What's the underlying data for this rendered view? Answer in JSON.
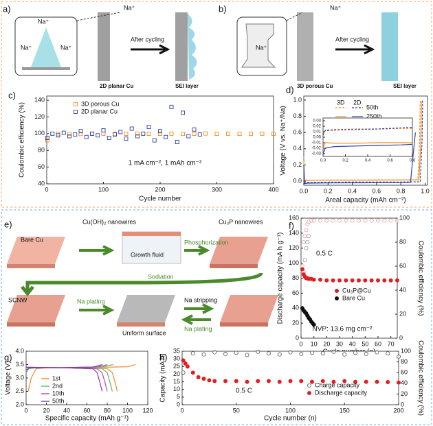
{
  "panels": {
    "a": {
      "label": "a)",
      "ions": [
        "Na⁺",
        "Na⁺",
        "Na⁺",
        "Na⁺"
      ],
      "after": "After cycling",
      "substrate": "2D planar Cu",
      "sei": "SEI layer"
    },
    "b": {
      "label": "b)",
      "ions": [
        "Na⁺",
        "Na⁺"
      ],
      "after": "After cycling",
      "substrate": "3D porous Cu",
      "sei": "SEI layer"
    },
    "e": {
      "label": "e)",
      "bare": "Bare Cu",
      "nanowires": "Cu(OH)₂ nanowires",
      "phos": "Phosphorization",
      "cu3p": "Cu₃P nanowires",
      "fluid": "Growth fluid",
      "sodiation": "Sodiation",
      "scnw": "SCNW",
      "plating1": "Na plating",
      "uniform": "Uniform surface",
      "stripping": "Na stripping",
      "plating2": "Na plating"
    }
  },
  "chart_data": [
    {
      "type": "scatter",
      "panel": "c)",
      "x_label": "Cycle number",
      "y_label": "Coulombic efficiency (%)",
      "xlim": [
        0,
        400
      ],
      "xticks": [
        0,
        100,
        200,
        300,
        400
      ],
      "ylim": [
        40,
        145
      ],
      "yticks": [
        40,
        60,
        80,
        100,
        120,
        140
      ],
      "annotations": [
        "1 mA cm⁻², 1 mAh cm⁻²"
      ],
      "series": [
        {
          "name": "3D porous Cu",
          "color": "#f28c1c",
          "marker": "square",
          "x": [
            1,
            20,
            40,
            60,
            80,
            100,
            120,
            140,
            160,
            180,
            200,
            220,
            240,
            260,
            280,
            300,
            320,
            340,
            360,
            380,
            400
          ],
          "values": [
            92,
            99.5,
            99.8,
            99.6,
            99.9,
            100,
            99.7,
            99.8,
            100.1,
            99.9,
            99.8,
            100,
            99.7,
            99.9,
            100.2,
            99.8,
            100,
            99.9,
            99.7,
            100,
            99.8
          ]
        },
        {
          "name": "2D planar  Cu",
          "color": "#2a3fa8",
          "marker": "square",
          "x": [
            1,
            10,
            20,
            30,
            40,
            50,
            60,
            70,
            80,
            90,
            100,
            110,
            120,
            130,
            140,
            150,
            160,
            170,
            180,
            190,
            200,
            210,
            220,
            230,
            240,
            250,
            260,
            270
          ],
          "values": [
            95,
            100,
            98,
            101,
            97,
            99,
            103,
            96,
            100,
            98,
            104,
            95,
            99,
            102,
            94,
            106,
            97,
            100,
            108,
            92,
            103,
            96,
            132,
            90,
            125,
            97,
            105,
            99
          ]
        }
      ]
    },
    {
      "type": "line",
      "panel": "d)",
      "x_label": "Areal capacity (mAh cm⁻²)",
      "y_label": "Voltage (V vs. Na⁺/Na)",
      "xlim": [
        0,
        1.02
      ],
      "xticks": [
        {
          "value": 0,
          "label": "0.0"
        },
        0.2,
        0.4,
        0.6,
        0.8,
        {
          "value": 1,
          "label": "1.0"
        }
      ],
      "ylim": [
        -0.05,
        1.05
      ],
      "yticks": [
        {
          "value": 0,
          "label": "0.0"
        },
        0.2,
        0.4,
        0.6,
        0.8,
        {
          "value": 1,
          "label": "1.0"
        }
      ],
      "legend_labels": [
        "3D",
        "2D",
        "50th",
        "250th"
      ],
      "series": [
        {
          "color": "#f28c1c",
          "dash": true,
          "x": [
            0,
            0.005,
            0.03,
            0.2,
            0.5,
            0.8,
            0.94,
            0.955,
            0.96
          ],
          "values": [
            0.3,
            0.02,
            0.012,
            0.014,
            0.015,
            0.016,
            0.018,
            0.5,
            1.0
          ]
        },
        {
          "color": "#f28c1c",
          "x": [
            0,
            0.005,
            0.03,
            0.2,
            0.5,
            0.8,
            0.95,
            0.965,
            0.97
          ],
          "values": [
            0.25,
            0.01,
            0.01,
            0.012,
            0.013,
            0.014,
            0.016,
            0.5,
            0.99
          ]
        },
        {
          "color": "#2a3fa8",
          "dash": true,
          "x": [
            0,
            0.005,
            0.03,
            0.2,
            0.5,
            0.8,
            0.96,
            0.975,
            0.98
          ],
          "values": [
            0.2,
            -0.02,
            -0.015,
            -0.012,
            -0.01,
            -0.01,
            -0.008,
            0.5,
            1.0
          ]
        },
        {
          "color": "#2a3fa8",
          "x": [
            0,
            0.005,
            0.03,
            0.2,
            0.5,
            0.8,
            0.88,
            0.9,
            0.92
          ],
          "values": [
            0.2,
            -0.03,
            -0.025,
            -0.022,
            -0.02,
            -0.018,
            -0.015,
            0.3,
            0.6
          ]
        }
      ],
      "inset": {
        "xlim": [
          0,
          0.8
        ],
        "xticks": [
          {
            "value": 0,
            "label": "0.0"
          },
          0.2,
          0.4,
          0.6,
          0.8
        ],
        "ylim": [
          -0.035,
          0.035
        ],
        "yticks": [
          -0.03,
          -0.02,
          -0.01,
          {
            "value": 0,
            "label": "0.00"
          },
          0.01,
          0.02,
          0.03
        ],
        "series": [
          {
            "color": "#f28c1c",
            "dash": true,
            "x": [
              0,
              0.02,
              0.1,
              0.3,
              0.5,
              0.7,
              0.8
            ],
            "values": [
              0.005,
              0.013,
              0.014,
              0.015,
              0.015,
              0.016,
              0.016
            ]
          },
          {
            "color": "#f28c1c",
            "x": [
              0,
              0.02,
              0.1,
              0.3,
              0.5,
              0.7,
              0.8
            ],
            "values": [
              -0.02,
              -0.01,
              -0.011,
              -0.011,
              -0.01,
              -0.01,
              -0.01
            ]
          },
          {
            "color": "#2a3fa8",
            "dash": true,
            "x": [
              0,
              0.02,
              0.1,
              0.3,
              0.5,
              0.7,
              0.8
            ],
            "values": [
              0.004,
              0.012,
              0.013,
              0.014,
              0.015,
              0.017,
              0.018
            ]
          },
          {
            "color": "#2a3fa8",
            "x": [
              0,
              0.02,
              0.1,
              0.3,
              0.5,
              0.7,
              0.8
            ],
            "values": [
              -0.03,
              -0.02,
              -0.017,
              -0.016,
              -0.015,
              -0.014,
              -0.013
            ]
          }
        ]
      }
    },
    {
      "type": "scatter",
      "panel": "f)",
      "x_label": "Cycle number (n)",
      "y_label": "Discharge capacity (mA h g⁻¹)",
      "y2_label": "Coulombic efficiency (%)",
      "xlim": [
        0,
        75
      ],
      "xticks": [
        0,
        10,
        20,
        30,
        40,
        50,
        60,
        70
      ],
      "ylim": [
        0,
        160
      ],
      "yticks": [
        0,
        20,
        40,
        60,
        80,
        100,
        120,
        140,
        160
      ],
      "y2lim": [
        0,
        100
      ],
      "y2ticks": [
        0,
        20,
        40,
        60,
        80,
        100
      ],
      "annotations": [
        "0.5 C",
        "NVP: 13.6 mg cm⁻²"
      ],
      "series": [
        {
          "color": "#e8a0a8",
          "marker": "circle",
          "axis": "y2",
          "x": [
            1,
            2,
            3,
            4,
            5,
            6,
            8,
            10,
            15,
            20,
            25,
            30,
            35,
            40,
            45,
            50,
            55,
            60,
            65,
            70,
            75
          ],
          "values": [
            60,
            80,
            85,
            90,
            95,
            97,
            98,
            98,
            98,
            98,
            98,
            98,
            98,
            98,
            98,
            98,
            98,
            98,
            98,
            98,
            98
          ]
        },
        {
          "color": "#999999",
          "marker": "circle",
          "axis": "y2",
          "x": [
            2,
            3,
            4,
            5,
            6
          ],
          "values": [
            55,
            65,
            75,
            80,
            85
          ]
        },
        {
          "name": "Cu₃P@Cu",
          "color": "#e02020",
          "marker": "circle",
          "filled": true,
          "x": [
            1,
            2,
            3,
            4,
            5,
            6,
            8,
            10,
            15,
            20,
            25,
            30,
            35,
            40,
            45,
            50,
            55,
            60,
            65,
            70,
            75
          ],
          "values": [
            92,
            85,
            82,
            80,
            80,
            79,
            79,
            78,
            78,
            77,
            77,
            77,
            77,
            77,
            77,
            77,
            77,
            77,
            77,
            77,
            77
          ]
        },
        {
          "name": "Bare Cu",
          "color": "#111111",
          "marker": "circle",
          "filled": true,
          "x": [
            1,
            2,
            3,
            4,
            5,
            6,
            7,
            8,
            9,
            10
          ],
          "values": [
            40,
            37,
            35,
            33,
            30,
            27,
            25,
            22,
            20,
            18
          ]
        }
      ]
    },
    {
      "type": "line",
      "panel": "g)",
      "x_label": "Specific capacity (mAh g⁻¹)",
      "y_label": "Voltage (V)",
      "xlim": [
        0,
        120
      ],
      "xticks": [
        0,
        20,
        40,
        60,
        80,
        100,
        120
      ],
      "ylim": [
        2,
        4
      ],
      "yticks": [
        {
          "value": 2,
          "label": "2.0"
        },
        2.5,
        {
          "value": 3,
          "label": "3.0"
        },
        3.5,
        {
          "value": 4,
          "label": "4.0"
        }
      ],
      "series": [
        {
          "name": "1st",
          "color": "#f08a24",
          "x": [
            2,
            5,
            10,
            20,
            60,
            100,
            106,
            108,
            null,
            0,
            40,
            80,
            85,
            88,
            90
          ],
          "values": [
            2.5,
            3.0,
            3.35,
            3.38,
            3.39,
            3.42,
            3.48,
            3.5,
            null,
            3.4,
            3.38,
            3.35,
            3.2,
            2.8,
            2.5
          ]
        },
        {
          "name": "2nd",
          "color": "#5cb85c",
          "x": [
            0,
            3,
            10,
            40,
            75,
            83,
            86,
            null,
            0,
            40,
            75,
            80,
            83,
            85
          ],
          "values": [
            3.2,
            3.36,
            3.38,
            3.39,
            3.41,
            3.48,
            3.5,
            null,
            3.4,
            3.38,
            3.35,
            3.2,
            2.8,
            2.5
          ]
        },
        {
          "name": "10th",
          "color": "#c040c0",
          "x": [
            0,
            3,
            10,
            40,
            70,
            77,
            80,
            null,
            0,
            40,
            70,
            75,
            78,
            80
          ],
          "values": [
            3.3,
            3.37,
            3.38,
            3.39,
            3.41,
            3.47,
            3.5,
            null,
            3.4,
            3.38,
            3.34,
            3.2,
            2.8,
            2.5
          ]
        },
        {
          "name": "50th",
          "color": "#7b3fa0",
          "x": [
            0,
            3,
            10,
            40,
            66,
            72,
            75,
            null,
            0,
            40,
            66,
            70,
            73,
            75
          ],
          "values": [
            3.3,
            3.37,
            3.38,
            3.39,
            3.41,
            3.47,
            3.5,
            null,
            3.4,
            3.38,
            3.34,
            3.2,
            2.8,
            2.5
          ]
        }
      ]
    },
    {
      "type": "scatter",
      "panel": "h)",
      "x_label": "Cycle number (n)",
      "y_label": "Capacity (mA h)",
      "y2_label": "Coulombic efficiency (%)",
      "xlim": [
        0,
        200
      ],
      "xticks": [
        0,
        50,
        100,
        150,
        200
      ],
      "ylim": [
        0,
        35
      ],
      "yticks": [
        0,
        5,
        10,
        15,
        20,
        25,
        30,
        35
      ],
      "y2lim": [
        0,
        100
      ],
      "y2ticks": [
        0,
        20,
        40,
        60,
        80,
        100
      ],
      "annotations": [
        "0.5 C"
      ],
      "series": [
        {
          "name": "Charge capacity",
          "color": "#555555",
          "marker": "circle",
          "axis": "y2",
          "x": [
            1,
            10,
            20,
            30,
            40,
            50,
            60,
            70,
            80,
            90,
            100,
            110,
            120,
            130,
            140,
            150,
            160,
            170,
            180,
            190,
            200
          ],
          "values": [
            60,
            96,
            94,
            98,
            95,
            97,
            93,
            99,
            96,
            94,
            98,
            95,
            97,
            96,
            99,
            94,
            97,
            95,
            98,
            96,
            90
          ]
        },
        {
          "name": "Discharge capacity",
          "color": "#e02020",
          "marker": "circle",
          "filled": true,
          "x": [
            1,
            3,
            5,
            10,
            15,
            20,
            25,
            30,
            40,
            50,
            60,
            70,
            80,
            90,
            100,
            110,
            120,
            130,
            140,
            150,
            160,
            170,
            180,
            190,
            200
          ],
          "values": [
            29,
            27,
            25,
            21,
            18,
            17,
            16,
            15.5,
            15.5,
            15.5,
            15,
            15.5,
            15.5,
            15,
            15.5,
            15.5,
            15,
            15.5,
            15,
            15.5,
            15,
            15,
            15,
            14.8,
            14.5
          ]
        }
      ]
    }
  ]
}
